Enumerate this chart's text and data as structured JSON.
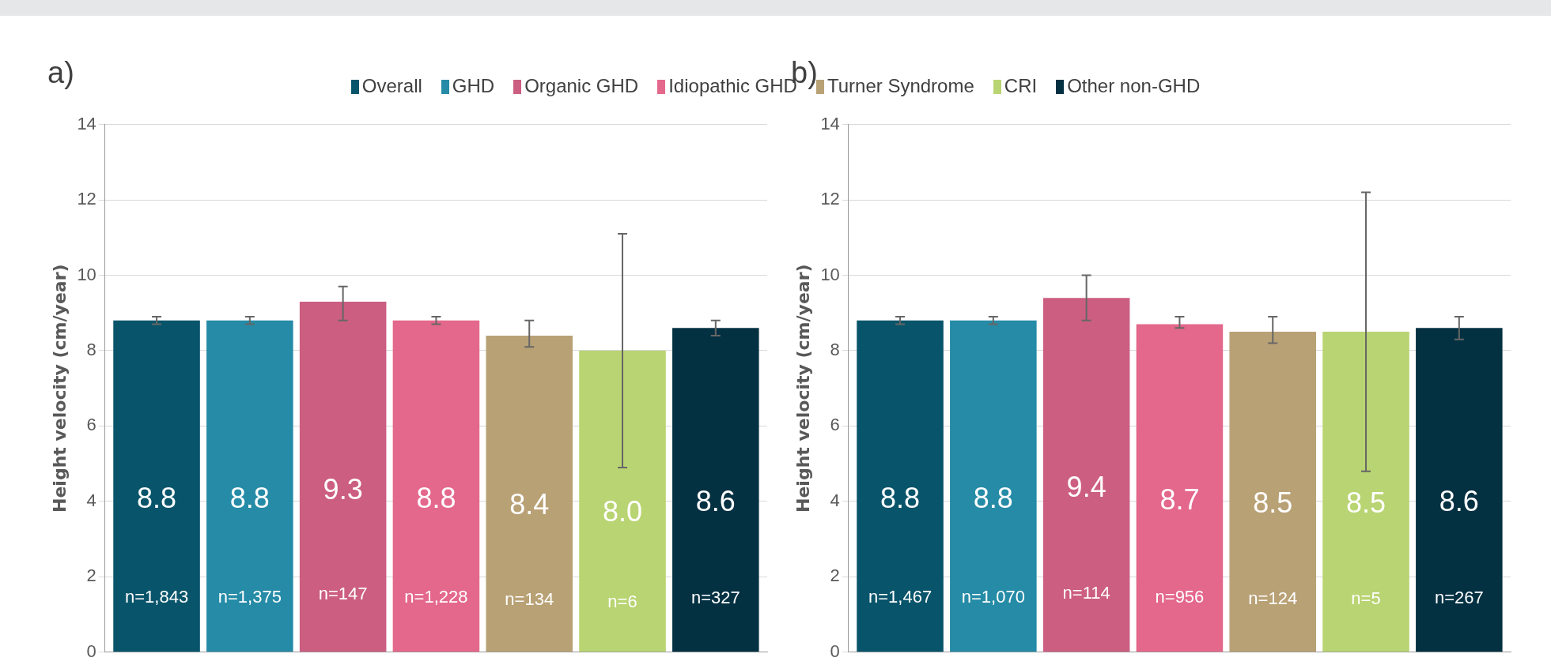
{
  "chart_data": [
    {
      "type": "bar",
      "title": "a)",
      "ylabel": "Height velocity (cm/year)",
      "categories": [
        null
      ],
      "ylim": [
        0,
        14
      ],
      "yticks": [
        0,
        2,
        4,
        6,
        8,
        10,
        12,
        14
      ],
      "grid": "y",
      "legend": "top",
      "series": [
        {
          "name": "Overall",
          "color": "#08546a",
          "values": [
            8.8
          ],
          "value_labels": [
            "8.8"
          ],
          "errors": [
            [
              8.7,
              8.9
            ]
          ]
        },
        {
          "name": "GHD",
          "color": "#258ba6",
          "values": [
            8.8
          ],
          "value_labels": [
            "8.8"
          ],
          "errors": [
            [
              8.7,
              8.9
            ]
          ]
        },
        {
          "name": "Organic GHD",
          "color": "#cc5e82",
          "values": [
            9.3
          ],
          "value_labels": [
            "9.3"
          ],
          "errors": [
            [
              8.8,
              9.7
            ]
          ]
        },
        {
          "name": "Idiopathic GHD",
          "color": "#e4678c",
          "values": [
            8.8
          ],
          "value_labels": [
            "8.8"
          ],
          "errors": [
            [
              8.7,
              8.9
            ]
          ]
        },
        {
          "name": "Turner Syndrome",
          "color": "#b9a176",
          "values": [
            8.4
          ],
          "value_labels": [
            "8.4"
          ],
          "errors": [
            [
              8.1,
              8.8
            ]
          ]
        },
        {
          "name": "CRI",
          "color": "#b9d472",
          "values": [
            8.0
          ],
          "value_labels": [
            "8.0"
          ],
          "errors": [
            [
              4.9,
              11.1
            ]
          ]
        },
        {
          "name": "Other non-GHD",
          "color": "#043142",
          "values": [
            8.6
          ],
          "value_labels": [
            "8.6"
          ],
          "errors": [
            [
              8.4,
              8.8
            ]
          ]
        }
      ],
      "annotations": [
        "n=1,843",
        "n=1,375",
        "n=147",
        "n=1,228",
        "n=134",
        "n=6",
        "n=327"
      ]
    },
    {
      "type": "bar",
      "title": "b)",
      "ylabel": "Height velocity (cm/year)",
      "categories": [
        null
      ],
      "ylim": [
        0,
        14
      ],
      "yticks": [
        0,
        2,
        4,
        6,
        8,
        10,
        12,
        14
      ],
      "grid": "y",
      "series": [
        {
          "color": "#08546a",
          "values": [
            8.8
          ],
          "value_labels": [
            "8.8"
          ],
          "errors": [
            [
              8.7,
              8.9
            ]
          ]
        },
        {
          "color": "#258ba6",
          "values": [
            8.8
          ],
          "value_labels": [
            "8.8"
          ],
          "errors": [
            [
              8.7,
              8.9
            ]
          ]
        },
        {
          "color": "#cc5e82",
          "values": [
            9.4
          ],
          "value_labels": [
            "9.4"
          ],
          "errors": [
            [
              8.8,
              10.0
            ]
          ]
        },
        {
          "color": "#e4678c",
          "values": [
            8.7
          ],
          "value_labels": [
            "8.7"
          ],
          "errors": [
            [
              8.6,
              8.9
            ]
          ]
        },
        {
          "color": "#b9a176",
          "values": [
            8.5
          ],
          "value_labels": [
            "8.5"
          ],
          "errors": [
            [
              8.2,
              8.9
            ]
          ]
        },
        {
          "color": "#b9d472",
          "values": [
            8.5
          ],
          "value_labels": [
            "8.5"
          ],
          "errors": [
            [
              4.8,
              12.2
            ]
          ]
        },
        {
          "color": "#043142",
          "values": [
            8.6
          ],
          "value_labels": [
            "8.6"
          ],
          "errors": [
            [
              8.3,
              8.9
            ]
          ]
        }
      ],
      "annotations": [
        "n=1,467",
        "n=1,070",
        "n=114",
        "n=956",
        "n=124",
        "n=5",
        "n=267"
      ]
    }
  ]
}
